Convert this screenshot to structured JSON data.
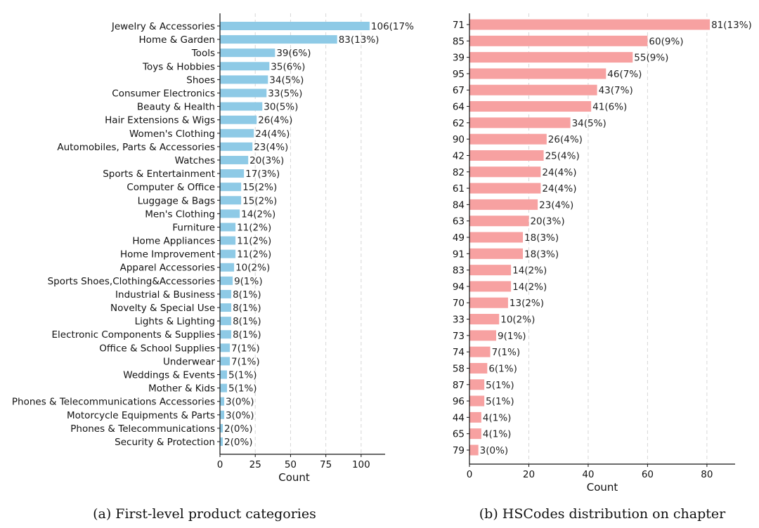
{
  "chart_data": [
    {
      "type": "bar",
      "orientation": "horizontal",
      "caption": "(a) First-level product categories",
      "xlabel": "Count",
      "ylabel": "",
      "xlim": [
        0,
        117
      ],
      "xticks": [
        0,
        25,
        50,
        75,
        100
      ],
      "grid": "vertical dashed",
      "color": "#8ecae6",
      "categories": [
        "Jewelry & Accessories",
        "Home & Garden",
        "Tools",
        "Toys & Hobbies",
        "Shoes",
        "Consumer Electronics",
        "Beauty & Health",
        "Hair Extensions & Wigs",
        "Women's Clothing",
        "Automobiles, Parts & Accessories",
        "Watches",
        "Sports & Entertainment",
        "Computer & Office",
        "Luggage & Bags",
        "Men's Clothing",
        "Furniture",
        "Home Appliances",
        "Home Improvement",
        "Apparel Accessories",
        "Sports Shoes,Clothing&Accessories",
        "Industrial & Business",
        "Novelty & Special Use",
        "Lights & Lighting",
        "Electronic Components & Supplies",
        "Office & School Supplies",
        "Underwear",
        "Weddings & Events",
        "Mother & Kids",
        "Phones & Telecommunications Accessories",
        "Motorcycle Equipments & Parts",
        "Phones & Telecommunications",
        "Security & Protection"
      ],
      "values": [
        106,
        83,
        39,
        35,
        34,
        33,
        30,
        26,
        24,
        23,
        20,
        17,
        15,
        15,
        14,
        11,
        11,
        11,
        10,
        9,
        8,
        8,
        8,
        8,
        7,
        7,
        5,
        5,
        3,
        3,
        2,
        2
      ],
      "labels": [
        "106(17%",
        "83(13%)",
        "39(6%)",
        "35(6%)",
        "34(5%)",
        "33(5%)",
        "30(5%)",
        "26(4%)",
        "24(4%)",
        "23(4%)",
        "20(3%)",
        "17(3%)",
        "15(2%)",
        "15(2%)",
        "14(2%)",
        "11(2%)",
        "11(2%)",
        "11(2%)",
        "10(2%)",
        "9(1%)",
        "8(1%)",
        "8(1%)",
        "8(1%)",
        "8(1%)",
        "7(1%)",
        "7(1%)",
        "5(1%)",
        "5(1%)",
        "3(0%)",
        "3(0%)",
        "2(0%)",
        "2(0%)"
      ]
    },
    {
      "type": "bar",
      "orientation": "horizontal",
      "caption": "(b) HSCodes distribution on chapter",
      "xlabel": "Count",
      "ylabel": "",
      "xlim": [
        0,
        89.5
      ],
      "xticks": [
        0,
        20,
        40,
        60,
        80
      ],
      "grid": "vertical dashed",
      "color": "#f7a1a1",
      "categories": [
        "71",
        "85",
        "39",
        "95",
        "67",
        "64",
        "62",
        "90",
        "42",
        "82",
        "61",
        "84",
        "63",
        "49",
        "91",
        "83",
        "94",
        "70",
        "33",
        "73",
        "74",
        "58",
        "87",
        "96",
        "44",
        "65",
        "79"
      ],
      "values": [
        81,
        60,
        55,
        46,
        43,
        41,
        34,
        26,
        25,
        24,
        24,
        23,
        20,
        18,
        18,
        14,
        14,
        13,
        10,
        9,
        7,
        6,
        5,
        5,
        4,
        4,
        3
      ],
      "labels": [
        "81(13%)",
        "60(9%)",
        "55(9%)",
        "46(7%)",
        "43(7%)",
        "41(6%)",
        "34(5%)",
        "26(4%)",
        "25(4%)",
        "24(4%)",
        "24(4%)",
        "23(4%)",
        "20(3%)",
        "18(3%)",
        "18(3%)",
        "14(2%)",
        "14(2%)",
        "13(2%)",
        "10(2%)",
        "9(1%)",
        "7(1%)",
        "6(1%)",
        "5(1%)",
        "5(1%)",
        "4(1%)",
        "4(1%)",
        "3(0%)"
      ]
    }
  ]
}
